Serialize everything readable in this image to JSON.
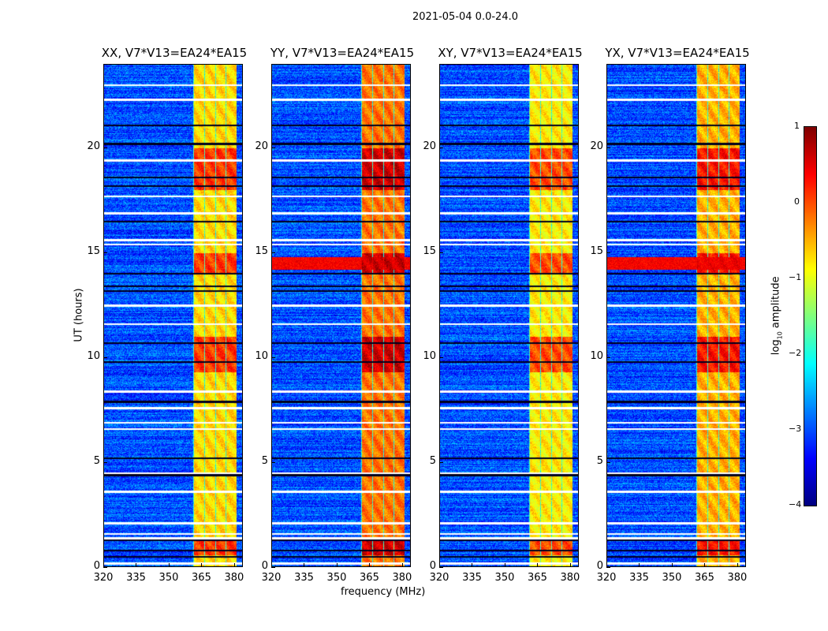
{
  "figure": {
    "suptitle": "2021-05-04 0.0-24.0"
  },
  "chart_data": {
    "type": "heatmap",
    "title": "2021-05-04 0.0-24.0",
    "xlabel": "frequency (MHz)",
    "ylabel": "UT (hours)",
    "xlim": [
      320,
      384
    ],
    "ylim": [
      0,
      24
    ],
    "xticks": [
      "320",
      "335",
      "350",
      "365",
      "380"
    ],
    "yticks": [
      "0",
      "5",
      "10",
      "15",
      "20"
    ],
    "panels": [
      {
        "title": "XX, V7*V13=EA24*EA15",
        "band_strength": -0.7
      },
      {
        "title": "YY, V7*V13=EA24*EA15",
        "band_strength": -0.2
      },
      {
        "title": "XY, V7*V13=EA24*EA15",
        "band_strength": -0.8
      },
      {
        "title": "YX, V7*V13=EA24*EA15",
        "band_strength": -0.5
      }
    ],
    "rfi_band_mhz": [
      361,
      381
    ],
    "colorbar": {
      "label": "log10 amplitude",
      "label_main": "log",
      "label_sub": "10",
      "label_rest": " amplitude",
      "range": [
        -4,
        1
      ],
      "ticks": [
        "1",
        "0",
        "−1",
        "−2",
        "−3",
        "−4"
      ],
      "colormap": "jet"
    }
  }
}
